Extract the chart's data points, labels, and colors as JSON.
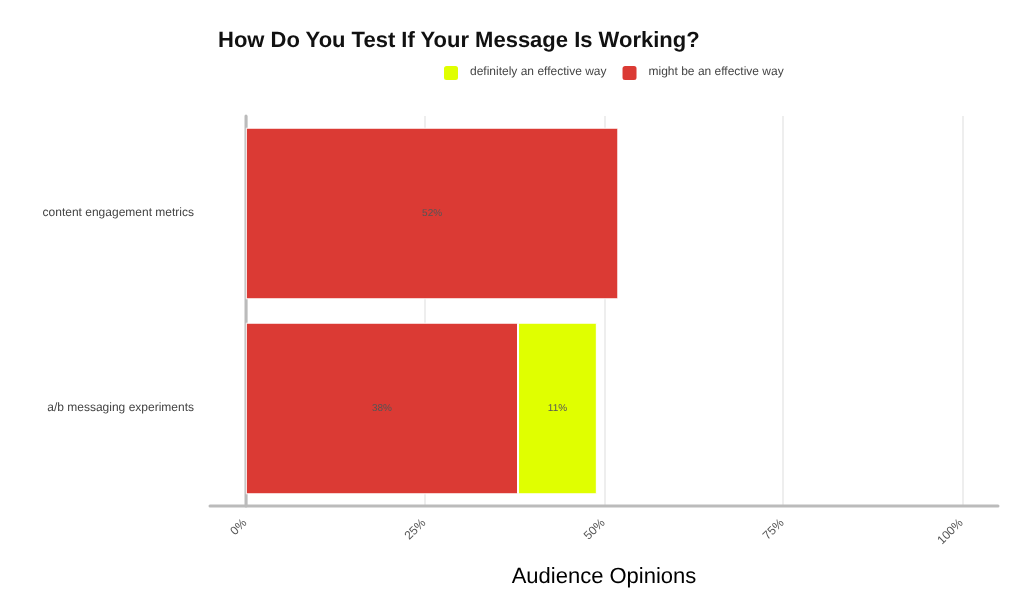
{
  "chart_data": {
    "type": "bar",
    "orientation": "horizontal",
    "stacked": true,
    "title": "How Do You Test If Your Message Is Working?",
    "xlabel": "Audience Opinions",
    "categories": [
      "content engagement metrics",
      "a/b messaging experiments"
    ],
    "series": [
      {
        "name": "might be an effective way",
        "color": "#db3a34",
        "values": [
          52,
          38
        ],
        "value_labels": [
          "52%",
          "38%"
        ]
      },
      {
        "name": "definitely an effective way",
        "color": "#e0ff00",
        "values": [
          null,
          11
        ],
        "value_labels": [
          null,
          "11%"
        ]
      }
    ],
    "xlim": [
      -5,
      105
    ],
    "xticks": [
      {
        "value": 0,
        "label": "0%"
      },
      {
        "value": 25,
        "label": "25%"
      },
      {
        "value": 50,
        "label": "50%"
      },
      {
        "value": 75,
        "label": "75%"
      },
      {
        "value": 100,
        "label": "100%"
      }
    ],
    "grid": "x",
    "legend": "top"
  }
}
